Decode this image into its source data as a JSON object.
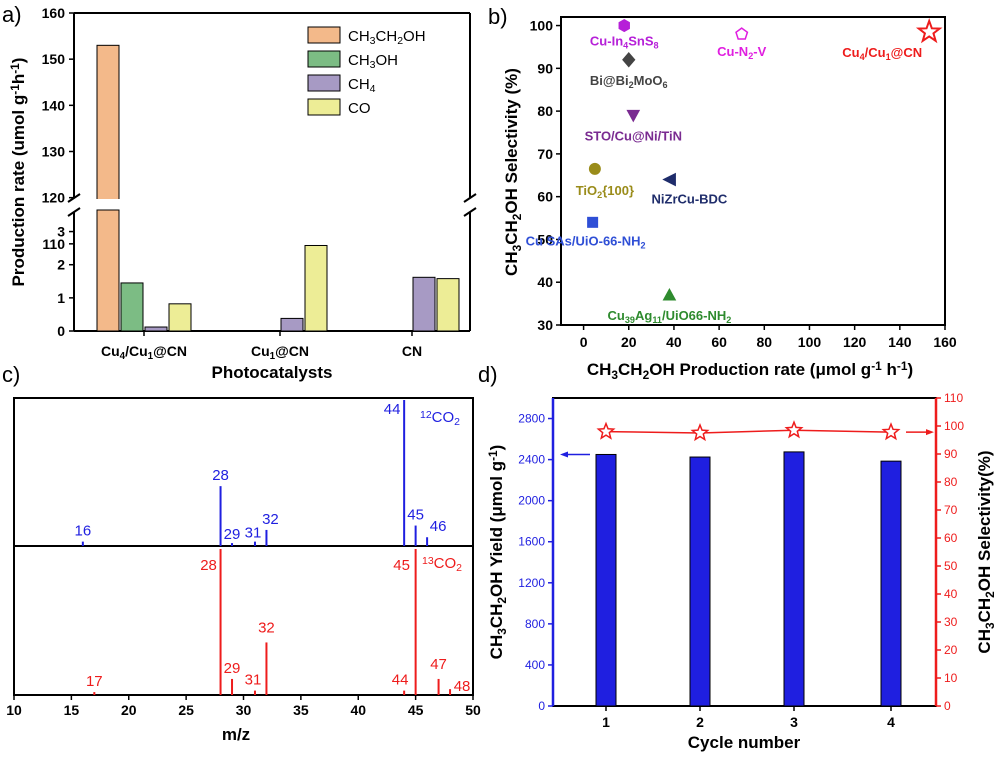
{
  "panels": {
    "a": {
      "letter": "a)"
    },
    "b": {
      "letter": "b)"
    },
    "c": {
      "letter": "c)"
    },
    "d": {
      "letter": "d)"
    }
  },
  "chart_data": [
    {
      "panel": "a",
      "type": "bar",
      "xlabel": "Photocatalysts",
      "ylabel": "Production rate (umol g-1h-1)",
      "categories": [
        "Cu4/Cu1@CN",
        "Cu1@CN",
        "CN"
      ],
      "category_labels": [
        {
          "base": "Cu",
          "sub": "4",
          "mid": "/Cu",
          "sub2": "1",
          "tail": "@CN"
        },
        {
          "base": "Cu",
          "sub": "1",
          "mid": "@CN",
          "sub2": "",
          "tail": ""
        },
        {
          "base": "CN",
          "sub": "",
          "mid": "",
          "sub2": "",
          "tail": ""
        }
      ],
      "series": [
        {
          "name": "CH3CH2OH",
          "color": "#f3b98a",
          "values": [
            153,
            0,
            0
          ]
        },
        {
          "name": "CH3OH",
          "color": "#7cbc84",
          "values": [
            1.45,
            0,
            0
          ]
        },
        {
          "name": "CH4",
          "color": "#a79ac4",
          "values": [
            0.12,
            0.38,
            1.62
          ]
        },
        {
          "name": "CO",
          "color": "#eded96",
          "values": [
            0.82,
            2.58,
            1.58
          ]
        }
      ],
      "legend": [
        {
          "parts": [
            [
              "CH",
              ""
            ],
            [
              "3",
              "sub"
            ],
            [
              "CH",
              ""
            ],
            [
              "2",
              "sub"
            ],
            [
              "OH",
              ""
            ]
          ]
        },
        {
          "parts": [
            [
              "CH",
              ""
            ],
            [
              "3",
              "sub"
            ],
            [
              "OH",
              ""
            ]
          ]
        },
        {
          "parts": [
            [
              "CH",
              ""
            ],
            [
              "4",
              "sub"
            ]
          ]
        },
        {
          "parts": [
            [
              "CO",
              ""
            ]
          ]
        }
      ],
      "axis_break": {
        "lower": [
          0,
          3.5
        ],
        "upper": [
          100,
          160
        ]
      },
      "yticks_lower": [
        "0",
        "1",
        "2",
        "3"
      ],
      "yticks_upper": [
        "110",
        "120",
        "130",
        "140",
        "150",
        "160"
      ],
      "legend_position": "top-right"
    },
    {
      "panel": "b",
      "type": "scatter",
      "xlabel": "CH3CH2OH Production rate (μmol g-1 h-1)",
      "ylabel": "CH3CH2OH Selectivity (%)",
      "xlim": [
        -10,
        160
      ],
      "ylim": [
        30,
        102
      ],
      "xticks": [
        "0",
        "20",
        "40",
        "60",
        "80",
        "100",
        "120",
        "140",
        "160"
      ],
      "yticks": [
        "30",
        "40",
        "50",
        "60",
        "70",
        "80",
        "90",
        "100"
      ],
      "points": [
        {
          "label": "Cu-In4SnS8",
          "x": 18,
          "y": 100,
          "color": "#b620d8",
          "marker": "hexagon",
          "label_parts": [
            [
              "Cu-In",
              ""
            ],
            [
              "4",
              "sub"
            ],
            [
              "SnS",
              ""
            ],
            [
              "8",
              "sub"
            ]
          ]
        },
        {
          "label": "Bi@Bi2MoO6",
          "x": 20,
          "y": 92,
          "color": "#444444",
          "marker": "diamond",
          "label_parts": [
            [
              "Bi@Bi",
              ""
            ],
            [
              "2",
              "sub"
            ],
            [
              "MoO",
              ""
            ],
            [
              "6",
              "sub"
            ]
          ]
        },
        {
          "label": "Cu-N2-V",
          "x": 70,
          "y": 98,
          "color": "#e01ee0",
          "marker": "pentagon",
          "label_parts": [
            [
              "Cu-N",
              ""
            ],
            [
              "2",
              "sub"
            ],
            [
              "-V",
              ""
            ]
          ]
        },
        {
          "label": "Cu4/Cu1@CN",
          "x": 153,
          "y": 98.5,
          "color": "#ee1c1c",
          "marker": "star",
          "label_parts": [
            [
              "Cu",
              ""
            ],
            [
              "4",
              "sub"
            ],
            [
              "/Cu",
              ""
            ],
            [
              "1",
              "sub"
            ],
            [
              "@CN",
              ""
            ]
          ]
        },
        {
          "label": "STO/Cu@Ni/TiN",
          "x": 22,
          "y": 79,
          "color": "#7a2b91",
          "marker": "triangle-down",
          "label_parts": [
            [
              "STO/Cu@Ni/TiN",
              ""
            ]
          ]
        },
        {
          "label": "TiO2{100}",
          "x": 5,
          "y": 66.5,
          "color": "#9a8c1a",
          "marker": "circle",
          "label_parts": [
            [
              "TiO",
              ""
            ],
            [
              "2",
              "sub"
            ],
            [
              "{100}",
              ""
            ]
          ]
        },
        {
          "label": "NiZrCu-BDC",
          "x": 38,
          "y": 64,
          "color": "#1f2d6b",
          "marker": "triangle-left",
          "label_parts": [
            [
              "NiZrCu-BDC",
              ""
            ]
          ]
        },
        {
          "label": "Cu SAs/UiO-66-NH2",
          "x": 4,
          "y": 54,
          "color": "#2f4fd6",
          "marker": "square",
          "label_parts": [
            [
              "Cu SAs/UiO-66-NH",
              ""
            ],
            [
              "2",
              "sub"
            ]
          ]
        },
        {
          "label": "Cu39Ag11/UiO66-NH2",
          "x": 38,
          "y": 37,
          "color": "#2e8b2e",
          "marker": "triangle-up",
          "label_parts": [
            [
              "Cu",
              ""
            ],
            [
              "39",
              "sub"
            ],
            [
              "Ag",
              ""
            ],
            [
              "11",
              "sub"
            ],
            [
              "/UiO66-NH",
              ""
            ],
            [
              "2",
              "sub"
            ]
          ]
        }
      ]
    },
    {
      "panel": "c",
      "type": "bar",
      "xlabel": "m/z",
      "xlim": [
        10,
        50
      ],
      "xticks": [
        "10",
        "15",
        "20",
        "25",
        "30",
        "35",
        "40",
        "45",
        "50"
      ],
      "series": [
        {
          "name": "12CO2",
          "color": "#1f1fe0",
          "label_parts": [
            [
              "12",
              "sup"
            ],
            [
              "CO",
              ""
            ],
            [
              "2",
              "sub"
            ]
          ],
          "x": [
            16,
            28,
            29,
            31,
            32,
            44,
            45,
            46
          ],
          "values": [
            0.03,
            0.41,
            0.02,
            0.03,
            0.11,
            1.0,
            0.14,
            0.06
          ]
        },
        {
          "name": "13CO2",
          "color": "#ee1c1c",
          "label_parts": [
            [
              "13",
              "sup"
            ],
            [
              "CO",
              ""
            ],
            [
              "2",
              "sub"
            ]
          ],
          "x": [
            17,
            28,
            29,
            31,
            32,
            44,
            45,
            47,
            48
          ],
          "values": [
            0.02,
            1.0,
            0.11,
            0.03,
            0.36,
            0.03,
            1.0,
            0.11,
            0.04
          ]
        }
      ]
    },
    {
      "panel": "d",
      "type": "bar",
      "xlabel": "Cycle number",
      "ylabel": "CH3CH2OH Yield (μmol g-1)",
      "ylabel_right": "CH3CH2OH Selectivity(%)",
      "categories": [
        "1",
        "2",
        "3",
        "4"
      ],
      "values": [
        2450,
        2425,
        2475,
        2385
      ],
      "selectivity": [
        98,
        97.5,
        98.5,
        97.8
      ],
      "ylim": [
        0,
        3000
      ],
      "ylim_right": [
        0,
        110
      ],
      "yticks": [
        "0",
        "400",
        "800",
        "1200",
        "1600",
        "2000",
        "2400",
        "2800"
      ],
      "yticks_right": [
        "0",
        "10",
        "20",
        "30",
        "40",
        "50",
        "60",
        "70",
        "80",
        "90",
        "100",
        "110"
      ],
      "bar_color": "#1f1fe0",
      "line_color": "#ee1c1c"
    }
  ]
}
